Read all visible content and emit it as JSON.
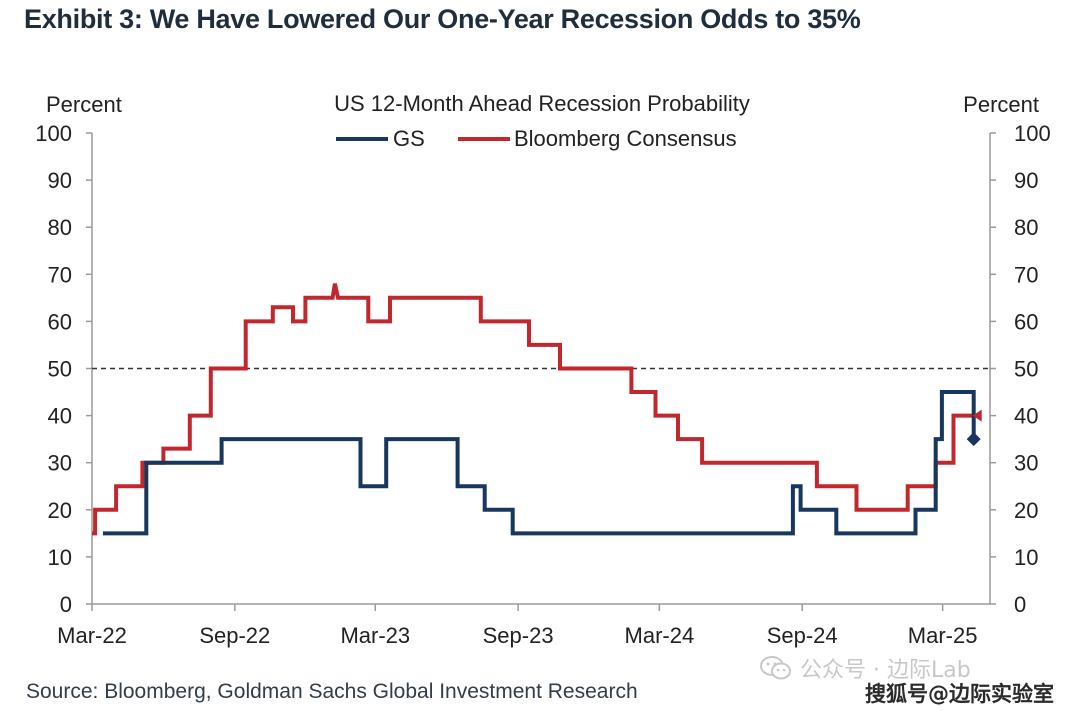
{
  "exhibit_title": "Exhibit 3: We Have Lowered Our One-Year Recession Odds to 35%",
  "source": "Source: Bloomberg, Goldman Sachs Global Investment Research",
  "watermark_1": "公众号 · 边际Lab",
  "watermark_2": "搜狐号@边际实验室",
  "chart_data": {
    "type": "line",
    "title": "US 12-Month Ahead Recession Probability",
    "ylabel_left": "Percent",
    "ylabel_right": "Percent",
    "ylim": [
      0,
      100
    ],
    "yticks": [
      0,
      10,
      20,
      30,
      40,
      50,
      60,
      70,
      80,
      90,
      100
    ],
    "xlim": [
      "2022-03",
      "2025-05"
    ],
    "xticks": [
      "Mar-22",
      "Sep-22",
      "Mar-23",
      "Sep-23",
      "Mar-24",
      "Sep-24",
      "Mar-25"
    ],
    "grid": false,
    "legend": "top-center",
    "reference_line": {
      "y": 50,
      "style": "dashed"
    },
    "series": [
      {
        "name": "GS",
        "color": "#17375e",
        "step": true,
        "points": [
          [
            "2022-03-15",
            15
          ],
          [
            "2022-05-10",
            15
          ],
          [
            "2022-05-10",
            30
          ],
          [
            "2022-08-15",
            30
          ],
          [
            "2022-08-15",
            35
          ],
          [
            "2023-02-10",
            35
          ],
          [
            "2023-02-10",
            25
          ],
          [
            "2023-03-15",
            25
          ],
          [
            "2023-03-15",
            35
          ],
          [
            "2023-06-15",
            35
          ],
          [
            "2023-06-15",
            25
          ],
          [
            "2023-07-20",
            25
          ],
          [
            "2023-07-20",
            20
          ],
          [
            "2023-08-25",
            20
          ],
          [
            "2023-08-25",
            15
          ],
          [
            "2024-08-20",
            15
          ],
          [
            "2024-08-20",
            25
          ],
          [
            "2024-08-30",
            25
          ],
          [
            "2024-08-30",
            20
          ],
          [
            "2024-10-15",
            20
          ],
          [
            "2024-10-15",
            15
          ],
          [
            "2025-01-25",
            15
          ],
          [
            "2025-01-25",
            20
          ],
          [
            "2025-02-20",
            20
          ],
          [
            "2025-02-20",
            35
          ],
          [
            "2025-02-28",
            35
          ],
          [
            "2025-02-28",
            45
          ],
          [
            "2025-04-10",
            45
          ],
          [
            "2025-04-10",
            35
          ]
        ],
        "end_marker": {
          "date": "2025-04-10",
          "value": 35,
          "shape": "diamond"
        }
      },
      {
        "name": "Bloomberg Consensus",
        "color": "#c0282d",
        "step": true,
        "points": [
          [
            "2022-03-01",
            15
          ],
          [
            "2022-03-05",
            15
          ],
          [
            "2022-03-05",
            20
          ],
          [
            "2022-04-01",
            20
          ],
          [
            "2022-04-01",
            25
          ],
          [
            "2022-05-05",
            25
          ],
          [
            "2022-05-05",
            30
          ],
          [
            "2022-06-01",
            30
          ],
          [
            "2022-06-01",
            33
          ],
          [
            "2022-07-05",
            33
          ],
          [
            "2022-07-05",
            40
          ],
          [
            "2022-08-01",
            40
          ],
          [
            "2022-08-01",
            50
          ],
          [
            "2022-09-15",
            50
          ],
          [
            "2022-09-15",
            60
          ],
          [
            "2022-10-20",
            60
          ],
          [
            "2022-10-20",
            63
          ],
          [
            "2022-11-15",
            63
          ],
          [
            "2022-11-15",
            60
          ],
          [
            "2022-12-01",
            60
          ],
          [
            "2022-12-01",
            65
          ],
          [
            "2023-01-05",
            65
          ],
          [
            "2023-01-08",
            68
          ],
          [
            "2023-01-12",
            65
          ],
          [
            "2023-02-20",
            65
          ],
          [
            "2023-02-20",
            60
          ],
          [
            "2023-03-20",
            60
          ],
          [
            "2023-03-20",
            65
          ],
          [
            "2023-07-15",
            65
          ],
          [
            "2023-07-15",
            60
          ],
          [
            "2023-09-15",
            60
          ],
          [
            "2023-09-15",
            55
          ],
          [
            "2023-10-25",
            55
          ],
          [
            "2023-10-25",
            50
          ],
          [
            "2024-01-25",
            50
          ],
          [
            "2024-01-25",
            45
          ],
          [
            "2024-02-25",
            45
          ],
          [
            "2024-02-25",
            40
          ],
          [
            "2024-03-25",
            40
          ],
          [
            "2024-03-25",
            35
          ],
          [
            "2024-04-25",
            35
          ],
          [
            "2024-04-25",
            30
          ],
          [
            "2024-09-20",
            30
          ],
          [
            "2024-09-20",
            25
          ],
          [
            "2024-11-10",
            25
          ],
          [
            "2024-11-10",
            20
          ],
          [
            "2025-01-15",
            20
          ],
          [
            "2025-01-15",
            25
          ],
          [
            "2025-02-20",
            25
          ],
          [
            "2025-02-20",
            30
          ],
          [
            "2025-03-15",
            30
          ],
          [
            "2025-03-15",
            40
          ],
          [
            "2025-04-10",
            40
          ]
        ],
        "end_marker": {
          "date": "2025-04-10",
          "value": 40,
          "shape": "triangle"
        }
      }
    ]
  }
}
